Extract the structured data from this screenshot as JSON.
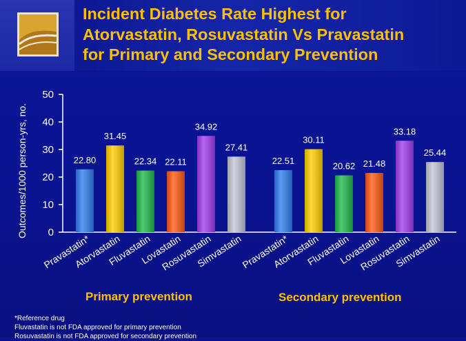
{
  "title_lines": [
    "Incident Diabetes Rate Highest for",
    "Atorvastatin, Rosuvastatin Vs Pravastatin",
    "for Primary and Secondary Prevention"
  ],
  "colors": {
    "background": "#0a1490",
    "title": "#ffc000",
    "text": "#ffffff",
    "bars": [
      "#2e7ff0",
      "#ffd000",
      "#1fba4a",
      "#ff5a10",
      "#a23cf0",
      "#c4c6d8"
    ]
  },
  "chart_data": {
    "type": "bar",
    "title": "Incident Diabetes Rate Highest for Atorvastatin, Rosuvastatin Vs Pravastatin for Primary and Secondary Prevention",
    "ylabel": "Outcomes/1000 person-yrs, no.",
    "ylim": [
      0,
      50
    ],
    "yticks": [
      0,
      10,
      20,
      30,
      40,
      50
    ],
    "grid": false,
    "groups": [
      {
        "name": "Primary prevention",
        "categories": [
          "Pravastatin*",
          "Atorvastatin",
          "Fluvastatin",
          "Lovastatin",
          "Rosuvastatin",
          "Simvastatin"
        ],
        "values": [
          22.8,
          31.45,
          22.34,
          22.11,
          34.92,
          27.41
        ],
        "value_labels": [
          "22.80",
          "31.45",
          "22.34",
          "22.11",
          "34.92",
          "27.41"
        ]
      },
      {
        "name": "Secondary prevention",
        "categories": [
          "Pravastatin*",
          "Atorvastatin",
          "Fluvastatin",
          "Lovastatin",
          "Rosuvastatin",
          "Simvastatin"
        ],
        "values": [
          22.51,
          30.11,
          20.62,
          21.48,
          33.18,
          25.44
        ],
        "value_labels": [
          "22.51",
          "30.11",
          "20.62",
          "21.48",
          "33.18",
          "25.44"
        ]
      }
    ]
  },
  "footnotes": [
    "*Reference drug",
    "Fluvastatin is not FDA approved for primary prevention",
    "Rosuvastatin is not FDA approved for secondary prevention"
  ]
}
